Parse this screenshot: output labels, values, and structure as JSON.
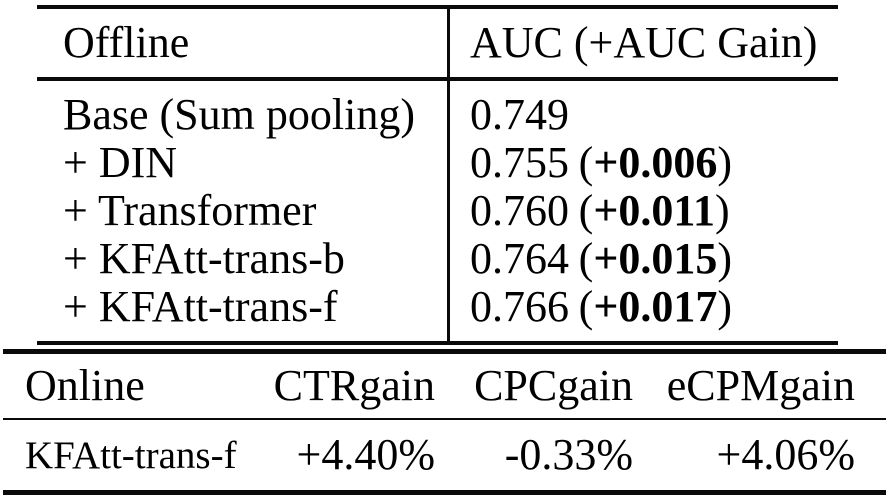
{
  "colors": {
    "background": "#ffffff",
    "text": "#000000",
    "rule": "#0a0a0a"
  },
  "offline_table": {
    "header": {
      "col1": "Offline",
      "col2": "AUC (+AUC Gain)"
    },
    "rows": [
      {
        "model": "Base (Sum pooling)",
        "auc": "0.749"
      },
      {
        "model": "+ DIN",
        "auc": "0.755",
        "paren_open": "(",
        "gain": "+0.006",
        "paren_close": ")"
      },
      {
        "model": "+ Transformer",
        "auc": "0.760",
        "paren_open": "(",
        "gain": "+0.011",
        "paren_close": ")"
      },
      {
        "model": "+ KFAtt-trans-b",
        "auc": "0.764",
        "paren_open": "(",
        "gain": "+0.015",
        "paren_close": ")"
      },
      {
        "model": "+ KFAtt-trans-f",
        "auc": "0.766",
        "paren_open": "(",
        "gain": "+0.017",
        "paren_close": ")"
      }
    ]
  },
  "online_table": {
    "headers": {
      "col1": "Online",
      "col2": "CTRgain",
      "col3": "CPCgain",
      "col4": "eCPMgain"
    },
    "row": {
      "model": "KFAtt-trans-f",
      "ctr_gain": "+4.40%",
      "cpc_gain": "-0.33%",
      "ecpm_gain": "+4.06%"
    }
  }
}
